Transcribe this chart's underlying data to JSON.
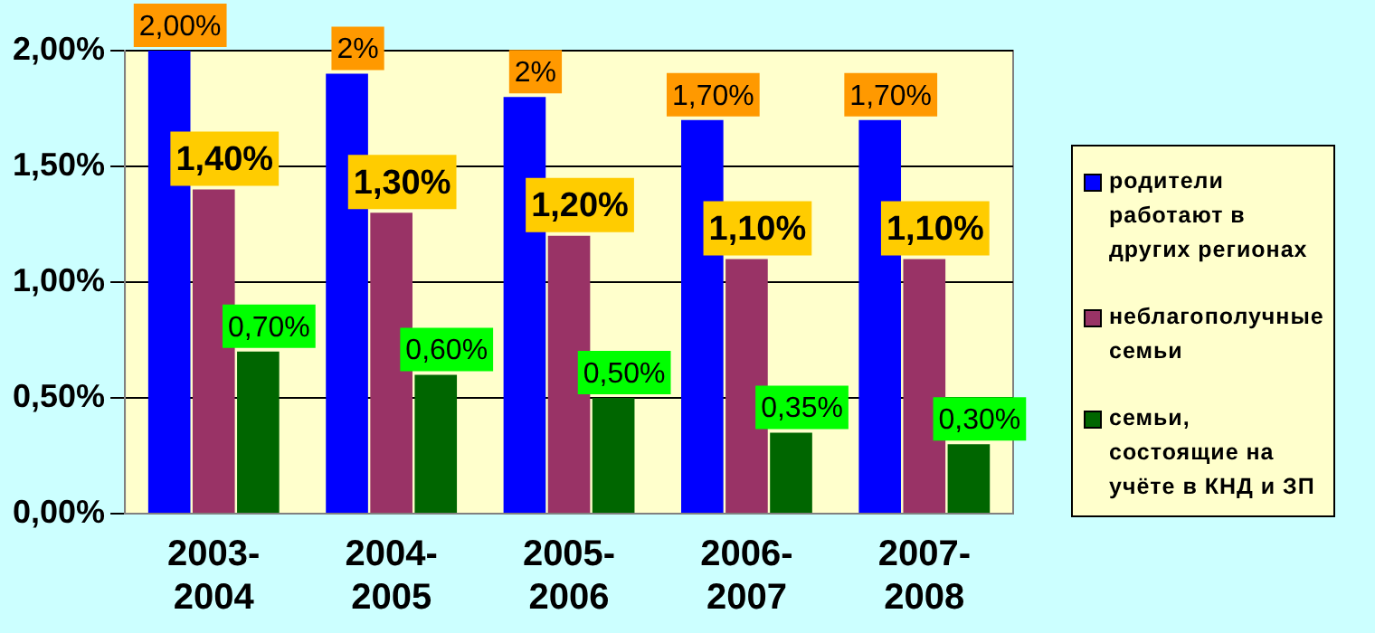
{
  "chart_data": {
    "type": "bar",
    "categories": [
      "2003-2004",
      "2004-2005",
      "2005-2006",
      "2006-2007",
      "2007-2008"
    ],
    "series": [
      {
        "name": "родители работают в других регионах",
        "color": "#0000ff",
        "values": [
          2.0,
          1.9,
          1.8,
          1.7,
          1.7
        ],
        "value_labels": [
          "2,00%",
          "2%",
          "2%",
          "1,70%",
          "1,70%"
        ]
      },
      {
        "name": "неблагополучные семьи",
        "color": "#993366",
        "values": [
          1.4,
          1.3,
          1.2,
          1.1,
          1.1
        ],
        "value_labels": [
          "1,40%",
          "1,30%",
          "1,20%",
          "1,10%",
          "1,10%"
        ]
      },
      {
        "name": "семьи, состоящие на учёте в КНД и ЗП",
        "color": "#006600",
        "values": [
          0.7,
          0.6,
          0.5,
          0.35,
          0.3
        ],
        "value_labels": [
          "0,70%",
          "0,60%",
          "0,50%",
          "0,35%",
          "0,30%"
        ]
      }
    ],
    "ylim": [
      0,
      2
    ],
    "yticks": [
      {
        "value": 0,
        "label": "0,00%"
      },
      {
        "value": 0.5,
        "label": "0,50%"
      },
      {
        "value": 1,
        "label": "1,00%"
      },
      {
        "value": 1.5,
        "label": "1,50%"
      },
      {
        "value": 2,
        "label": "2,00%"
      }
    ],
    "grid": "y",
    "legend": "right"
  }
}
